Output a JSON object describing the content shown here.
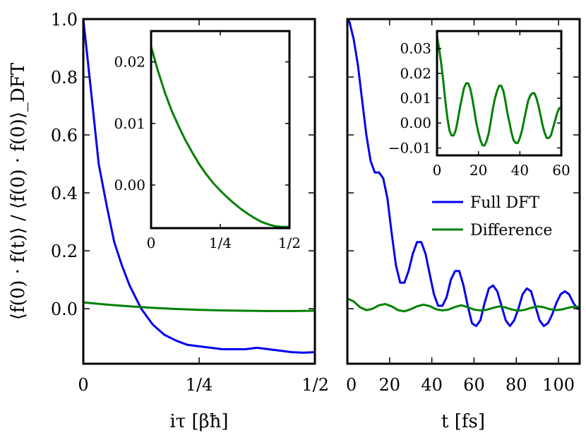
{
  "colors": {
    "full_dft": "#0000ee",
    "difference": "#008000",
    "axes": "#000000"
  },
  "chart_data": [
    {
      "type": "line",
      "panel": "left-main",
      "xlabel": "iτ [βħ]",
      "ylabel": "⟨f(0) · f(t)⟩ / ⟨f(0) · f(0)⟩_DFT",
      "xlim": [
        0,
        0.5
      ],
      "ylim": [
        -0.19,
        1.0
      ],
      "xticks": [
        0,
        0.25,
        0.5
      ],
      "xtick_labels": [
        "0",
        "1/4",
        "1/2"
      ],
      "yticks": [
        0.0,
        0.2,
        0.4,
        0.6,
        0.8,
        1.0
      ],
      "ytick_labels": [
        "0.0",
        "0.2",
        "0.4",
        "0.6",
        "0.8",
        "1.0"
      ],
      "series": [
        {
          "name": "Full DFT",
          "color": "#0000ee",
          "x": [
            0,
            0.0167,
            0.0333,
            0.05,
            0.0667,
            0.0833,
            0.1,
            0.125,
            0.15,
            0.175,
            0.2,
            0.225,
            0.25,
            0.275,
            0.3,
            0.325,
            0.35,
            0.375,
            0.4,
            0.425,
            0.45,
            0.475,
            0.5
          ],
          "y": [
            1.0,
            0.75,
            0.5,
            0.36,
            0.23,
            0.15,
            0.08,
            0.0,
            -0.055,
            -0.09,
            -0.11,
            -0.125,
            -0.13,
            -0.135,
            -0.14,
            -0.14,
            -0.14,
            -0.135,
            -0.14,
            -0.145,
            -0.15,
            -0.152,
            -0.15
          ]
        },
        {
          "name": "Difference",
          "color": "#008000",
          "x": [
            0,
            0.05,
            0.1,
            0.15,
            0.2,
            0.25,
            0.3,
            0.35,
            0.4,
            0.45,
            0.5
          ],
          "y": [
            0.022,
            0.014,
            0.008,
            0.003,
            -0.001,
            -0.004,
            -0.006,
            -0.007,
            -0.008,
            -0.008,
            -0.007
          ]
        }
      ]
    },
    {
      "type": "line",
      "panel": "left-inset",
      "xlim": [
        0,
        0.5
      ],
      "ylim": [
        -0.007,
        0.025
      ],
      "xticks": [
        0,
        0.25,
        0.5
      ],
      "xtick_labels": [
        "0",
        "1/4",
        "1/2"
      ],
      "yticks": [
        0.0,
        0.01,
        0.02
      ],
      "ytick_labels": [
        "0.00",
        "0.01",
        "0.02"
      ],
      "series": [
        {
          "name": "Difference",
          "color": "#008000",
          "x": [
            0,
            0.025,
            0.05,
            0.075,
            0.1,
            0.125,
            0.15,
            0.175,
            0.2,
            0.225,
            0.25,
            0.275,
            0.3,
            0.325,
            0.35,
            0.375,
            0.4,
            0.425,
            0.45,
            0.475,
            0.5
          ],
          "y": [
            0.0225,
            0.0185,
            0.015,
            0.012,
            0.0095,
            0.0072,
            0.0052,
            0.0033,
            0.0017,
            0.0003,
            -0.0009,
            -0.002,
            -0.003,
            -0.0039,
            -0.0047,
            -0.0054,
            -0.006,
            -0.0064,
            -0.0067,
            -0.0068,
            -0.0068
          ]
        }
      ]
    },
    {
      "type": "line",
      "panel": "right-main",
      "xlabel": "t [fs]",
      "xlim": [
        0,
        110
      ],
      "ylim": [
        -0.19,
        1.0
      ],
      "xticks": [
        0,
        20,
        40,
        60,
        80,
        100
      ],
      "xtick_labels": [
        "0",
        "20",
        "40",
        "60",
        "80",
        "100"
      ],
      "legend": {
        "position": "right",
        "entries": [
          "Full DFT",
          "Difference"
        ]
      },
      "series": [
        {
          "name": "Full DFT",
          "color": "#0000ee",
          "x": [
            0,
            1,
            3,
            5,
            7,
            9,
            11,
            13,
            15,
            17,
            19,
            21,
            23,
            25,
            27,
            29,
            31,
            33,
            35,
            37,
            39,
            41,
            43,
            45,
            47,
            49,
            51,
            53,
            55,
            57,
            59,
            61,
            63,
            65,
            67,
            69,
            71,
            73,
            75,
            77,
            79,
            81,
            83,
            85,
            87,
            89,
            91,
            93,
            95,
            97,
            99,
            101,
            103,
            105,
            107,
            109,
            110
          ],
          "y": [
            1.0,
            0.99,
            0.93,
            0.84,
            0.72,
            0.6,
            0.51,
            0.47,
            0.47,
            0.45,
            0.38,
            0.26,
            0.15,
            0.09,
            0.09,
            0.13,
            0.19,
            0.23,
            0.23,
            0.19,
            0.12,
            0.05,
            0.01,
            0.01,
            0.04,
            0.1,
            0.13,
            0.13,
            0.08,
            0.01,
            -0.05,
            -0.06,
            -0.04,
            0.02,
            0.07,
            0.08,
            0.06,
            0.01,
            -0.04,
            -0.06,
            -0.04,
            0.0,
            0.05,
            0.07,
            0.06,
            0.01,
            -0.04,
            -0.06,
            -0.05,
            -0.02,
            0.02,
            0.05,
            0.06,
            0.05,
            0.02,
            0.0,
            0.0
          ]
        },
        {
          "name": "Difference",
          "color": "#008000",
          "x": [
            0,
            3,
            6,
            9,
            12,
            15,
            18,
            21,
            24,
            27,
            30,
            33,
            36,
            39,
            42,
            45,
            48,
            51,
            54,
            57,
            60,
            63,
            66,
            69,
            72,
            75,
            78,
            81,
            84,
            87,
            90,
            93,
            96,
            99,
            102,
            105,
            108,
            110
          ],
          "y": [
            0.035,
            0.025,
            0.005,
            -0.005,
            0.0,
            0.012,
            0.016,
            0.008,
            -0.005,
            -0.009,
            -0.002,
            0.008,
            0.014,
            0.009,
            -0.002,
            -0.006,
            -0.003,
            0.006,
            0.012,
            0.005,
            -0.003,
            -0.006,
            -0.004,
            0.003,
            0.008,
            0.004,
            -0.003,
            -0.007,
            -0.004,
            0.003,
            0.008,
            0.005,
            -0.002,
            -0.005,
            -0.002,
            0.004,
            0.007,
            0.006
          ]
        }
      ]
    },
    {
      "type": "line",
      "panel": "right-inset",
      "xlim": [
        0,
        60
      ],
      "ylim": [
        -0.013,
        0.037
      ],
      "xticks": [
        0,
        20,
        40,
        60
      ],
      "xtick_labels": [
        "0",
        "20",
        "40",
        "60"
      ],
      "yticks": [
        -0.01,
        0.0,
        0.01,
        0.02,
        0.03
      ],
      "ytick_labels": [
        "−0.01",
        "0.00",
        "0.01",
        "0.02",
        "0.03"
      ],
      "series": [
        {
          "name": "Difference",
          "color": "#008000",
          "x": [
            0,
            1,
            2,
            3,
            4,
            5,
            6,
            7,
            8,
            9,
            10,
            11,
            12,
            13,
            14,
            15,
            16,
            17,
            18,
            19,
            20,
            21,
            22,
            23,
            24,
            25,
            26,
            27,
            28,
            29,
            30,
            31,
            32,
            33,
            34,
            35,
            36,
            37,
            38,
            39,
            40,
            41,
            42,
            43,
            44,
            45,
            46,
            47,
            48,
            49,
            50,
            51,
            52,
            53,
            54,
            55,
            56,
            57,
            58,
            59,
            60
          ],
          "y": [
            0.035,
            0.03,
            0.024,
            0.017,
            0.009,
            0.002,
            -0.003,
            -0.005,
            -0.005,
            -0.003,
            0.001,
            0.006,
            0.01,
            0.014,
            0.016,
            0.016,
            0.014,
            0.01,
            0.005,
            0.0,
            -0.004,
            -0.007,
            -0.009,
            -0.009,
            -0.007,
            -0.004,
            0.001,
            0.006,
            0.01,
            0.013,
            0.015,
            0.015,
            0.013,
            0.009,
            0.004,
            0.0,
            -0.004,
            -0.007,
            -0.008,
            -0.008,
            -0.006,
            -0.003,
            0.001,
            0.005,
            0.009,
            0.011,
            0.012,
            0.012,
            0.01,
            0.007,
            0.003,
            -0.001,
            -0.004,
            -0.006,
            -0.006,
            -0.005,
            -0.002,
            0.001,
            0.004,
            0.006,
            0.006
          ]
        }
      ]
    }
  ]
}
